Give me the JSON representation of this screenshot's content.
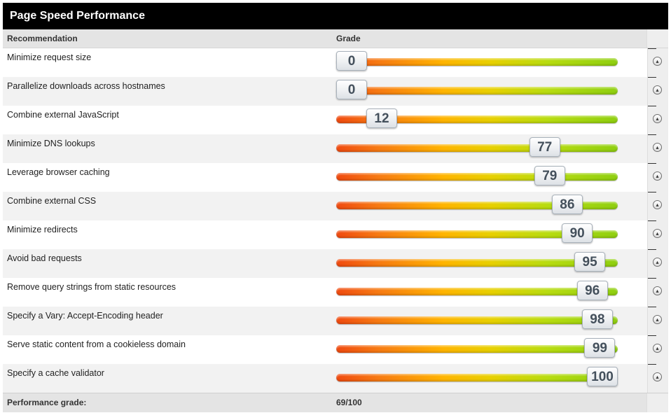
{
  "panel": {
    "title": "Page Speed Performance"
  },
  "columns": {
    "recommendation": "Recommendation",
    "grade": "Grade"
  },
  "rows": [
    {
      "label": "Minimize request size",
      "grade": "0"
    },
    {
      "label": "Parallelize downloads across hostnames",
      "grade": "0"
    },
    {
      "label": "Combine external JavaScript",
      "grade": "12"
    },
    {
      "label": "Minimize DNS lookups",
      "grade": "77"
    },
    {
      "label": "Leverage browser caching",
      "grade": "79"
    },
    {
      "label": "Combine external CSS",
      "grade": "86"
    },
    {
      "label": "Minimize redirects",
      "grade": "90"
    },
    {
      "label": "Avoid bad requests",
      "grade": "95"
    },
    {
      "label": "Remove query strings from static resources",
      "grade": "96"
    },
    {
      "label": "Specify a Vary: Accept-Encoding header",
      "grade": "98"
    },
    {
      "label": "Serve static content from a cookieless domain",
      "grade": "99"
    },
    {
      "label": "Specify a cache validator",
      "grade": "100"
    }
  ],
  "footer": {
    "label": "Performance grade:",
    "value": "69/100"
  },
  "icons": {
    "row_toggle": "chevron-up-circle-icon"
  },
  "colors": {
    "grade_low": "#f04a10",
    "grade_mid": "#ffb400",
    "grade_high": "#8fcf10"
  }
}
